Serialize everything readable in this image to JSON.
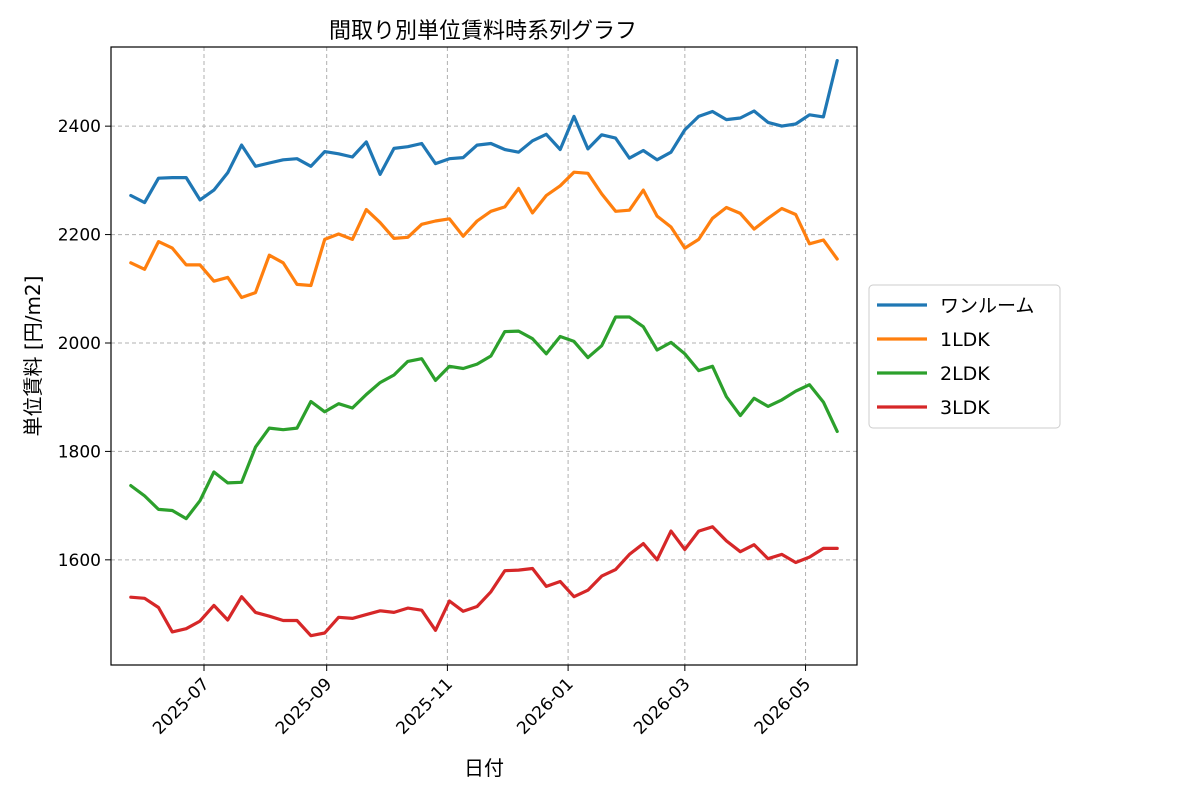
{
  "chart_data": {
    "type": "line",
    "title": "間取り別単位賃料時系列グラフ",
    "xlabel": "日付",
    "ylabel": "単位賃料 [円/m2]",
    "x": [
      "2025-05-25",
      "2025-06-01",
      "2025-06-08",
      "2025-06-15",
      "2025-06-22",
      "2025-06-29",
      "2025-07-06",
      "2025-07-13",
      "2025-07-20",
      "2025-07-27",
      "2025-08-03",
      "2025-08-10",
      "2025-08-17",
      "2025-08-24",
      "2025-08-31",
      "2025-09-07",
      "2025-09-14",
      "2025-09-21",
      "2025-09-28",
      "2025-10-05",
      "2025-10-12",
      "2025-10-19",
      "2025-10-26",
      "2025-11-02",
      "2025-11-09",
      "2025-11-16",
      "2025-11-23",
      "2025-11-30",
      "2025-12-07",
      "2025-12-14",
      "2025-12-21",
      "2025-12-28",
      "2026-01-04",
      "2026-01-11",
      "2026-01-18",
      "2026-01-25",
      "2026-02-01",
      "2026-02-08",
      "2026-02-15",
      "2026-02-22",
      "2026-03-01",
      "2026-03-08",
      "2026-03-15",
      "2026-03-22",
      "2026-03-29",
      "2026-04-05",
      "2026-04-12",
      "2026-04-19",
      "2026-04-26",
      "2026-05-03",
      "2026-05-10",
      "2026-05-17"
    ],
    "series": [
      {
        "name": "ワンルーム",
        "color": "#1f77b4",
        "values": [
          2272,
          2259,
          2304,
          2305,
          2305,
          2264,
          2282,
          2314,
          2365,
          2326,
          2332,
          2338,
          2340,
          2326,
          2353,
          2349,
          2343,
          2371,
          2311,
          2359,
          2362,
          2368,
          2331,
          2340,
          2342,
          2365,
          2368,
          2357,
          2352,
          2373,
          2385,
          2357,
          2418,
          2358,
          2384,
          2378,
          2341,
          2355,
          2338,
          2352,
          2393,
          2418,
          2427,
          2412,
          2415,
          2428,
          2407,
          2400,
          2404,
          2421,
          2417,
          2521
        ]
      },
      {
        "name": "1LDK",
        "color": "#ff7f0e",
        "values": [
          2148,
          2136,
          2187,
          2175,
          2144,
          2144,
          2114,
          2121,
          2084,
          2093,
          2162,
          2148,
          2108,
          2106,
          2191,
          2201,
          2191,
          2246,
          2222,
          2193,
          2195,
          2219,
          2225,
          2229,
          2197,
          2225,
          2243,
          2251,
          2285,
          2240,
          2272,
          2290,
          2315,
          2313,
          2275,
          2243,
          2245,
          2282,
          2234,
          2214,
          2175,
          2191,
          2230,
          2250,
          2239,
          2210,
          2230,
          2248,
          2237,
          2183,
          2190,
          2155
        ]
      },
      {
        "name": "2LDK",
        "color": "#2ca02c",
        "values": [
          1737,
          1718,
          1693,
          1691,
          1676,
          1709,
          1762,
          1742,
          1743,
          1808,
          1843,
          1840,
          1843,
          1892,
          1873,
          1888,
          1880,
          1905,
          1927,
          1941,
          1966,
          1971,
          1931,
          1957,
          1953,
          1961,
          1976,
          2021,
          2022,
          2008,
          1980,
          2012,
          2003,
          1973,
          1995,
          2048,
          2048,
          2030,
          1987,
          2001,
          1980,
          1949,
          1957,
          1901,
          1866,
          1898,
          1883,
          1895,
          1911,
          1923,
          1891,
          1837
        ]
      },
      {
        "name": "3LDK",
        "color": "#d62728",
        "values": [
          1531,
          1529,
          1512,
          1467,
          1473,
          1487,
          1516,
          1489,
          1532,
          1503,
          1496,
          1488,
          1488,
          1460,
          1465,
          1494,
          1492,
          1499,
          1506,
          1503,
          1511,
          1507,
          1470,
          1524,
          1505,
          1514,
          1541,
          1580,
          1581,
          1584,
          1551,
          1560,
          1532,
          1544,
          1570,
          1582,
          1610,
          1630,
          1600,
          1653,
          1619,
          1653,
          1661,
          1635,
          1615,
          1628,
          1602,
          1610,
          1595,
          1605,
          1621,
          1621
        ]
      }
    ],
    "xticks": [
      {
        "label": "2025-07",
        "date": "2025-07-01"
      },
      {
        "label": "2025-09",
        "date": "2025-09-01"
      },
      {
        "label": "2025-11",
        "date": "2025-11-01"
      },
      {
        "label": "2026-01",
        "date": "2026-01-01"
      },
      {
        "label": "2026-03",
        "date": "2026-03-01"
      },
      {
        "label": "2026-05",
        "date": "2026-05-01"
      }
    ],
    "yticks": [
      1600,
      1800,
      2000,
      2200,
      2400
    ],
    "xlim": [
      "2025-05-15",
      "2026-05-27"
    ],
    "ylim": [
      1406,
      2546
    ],
    "grid": true,
    "legend": "outside-right"
  }
}
